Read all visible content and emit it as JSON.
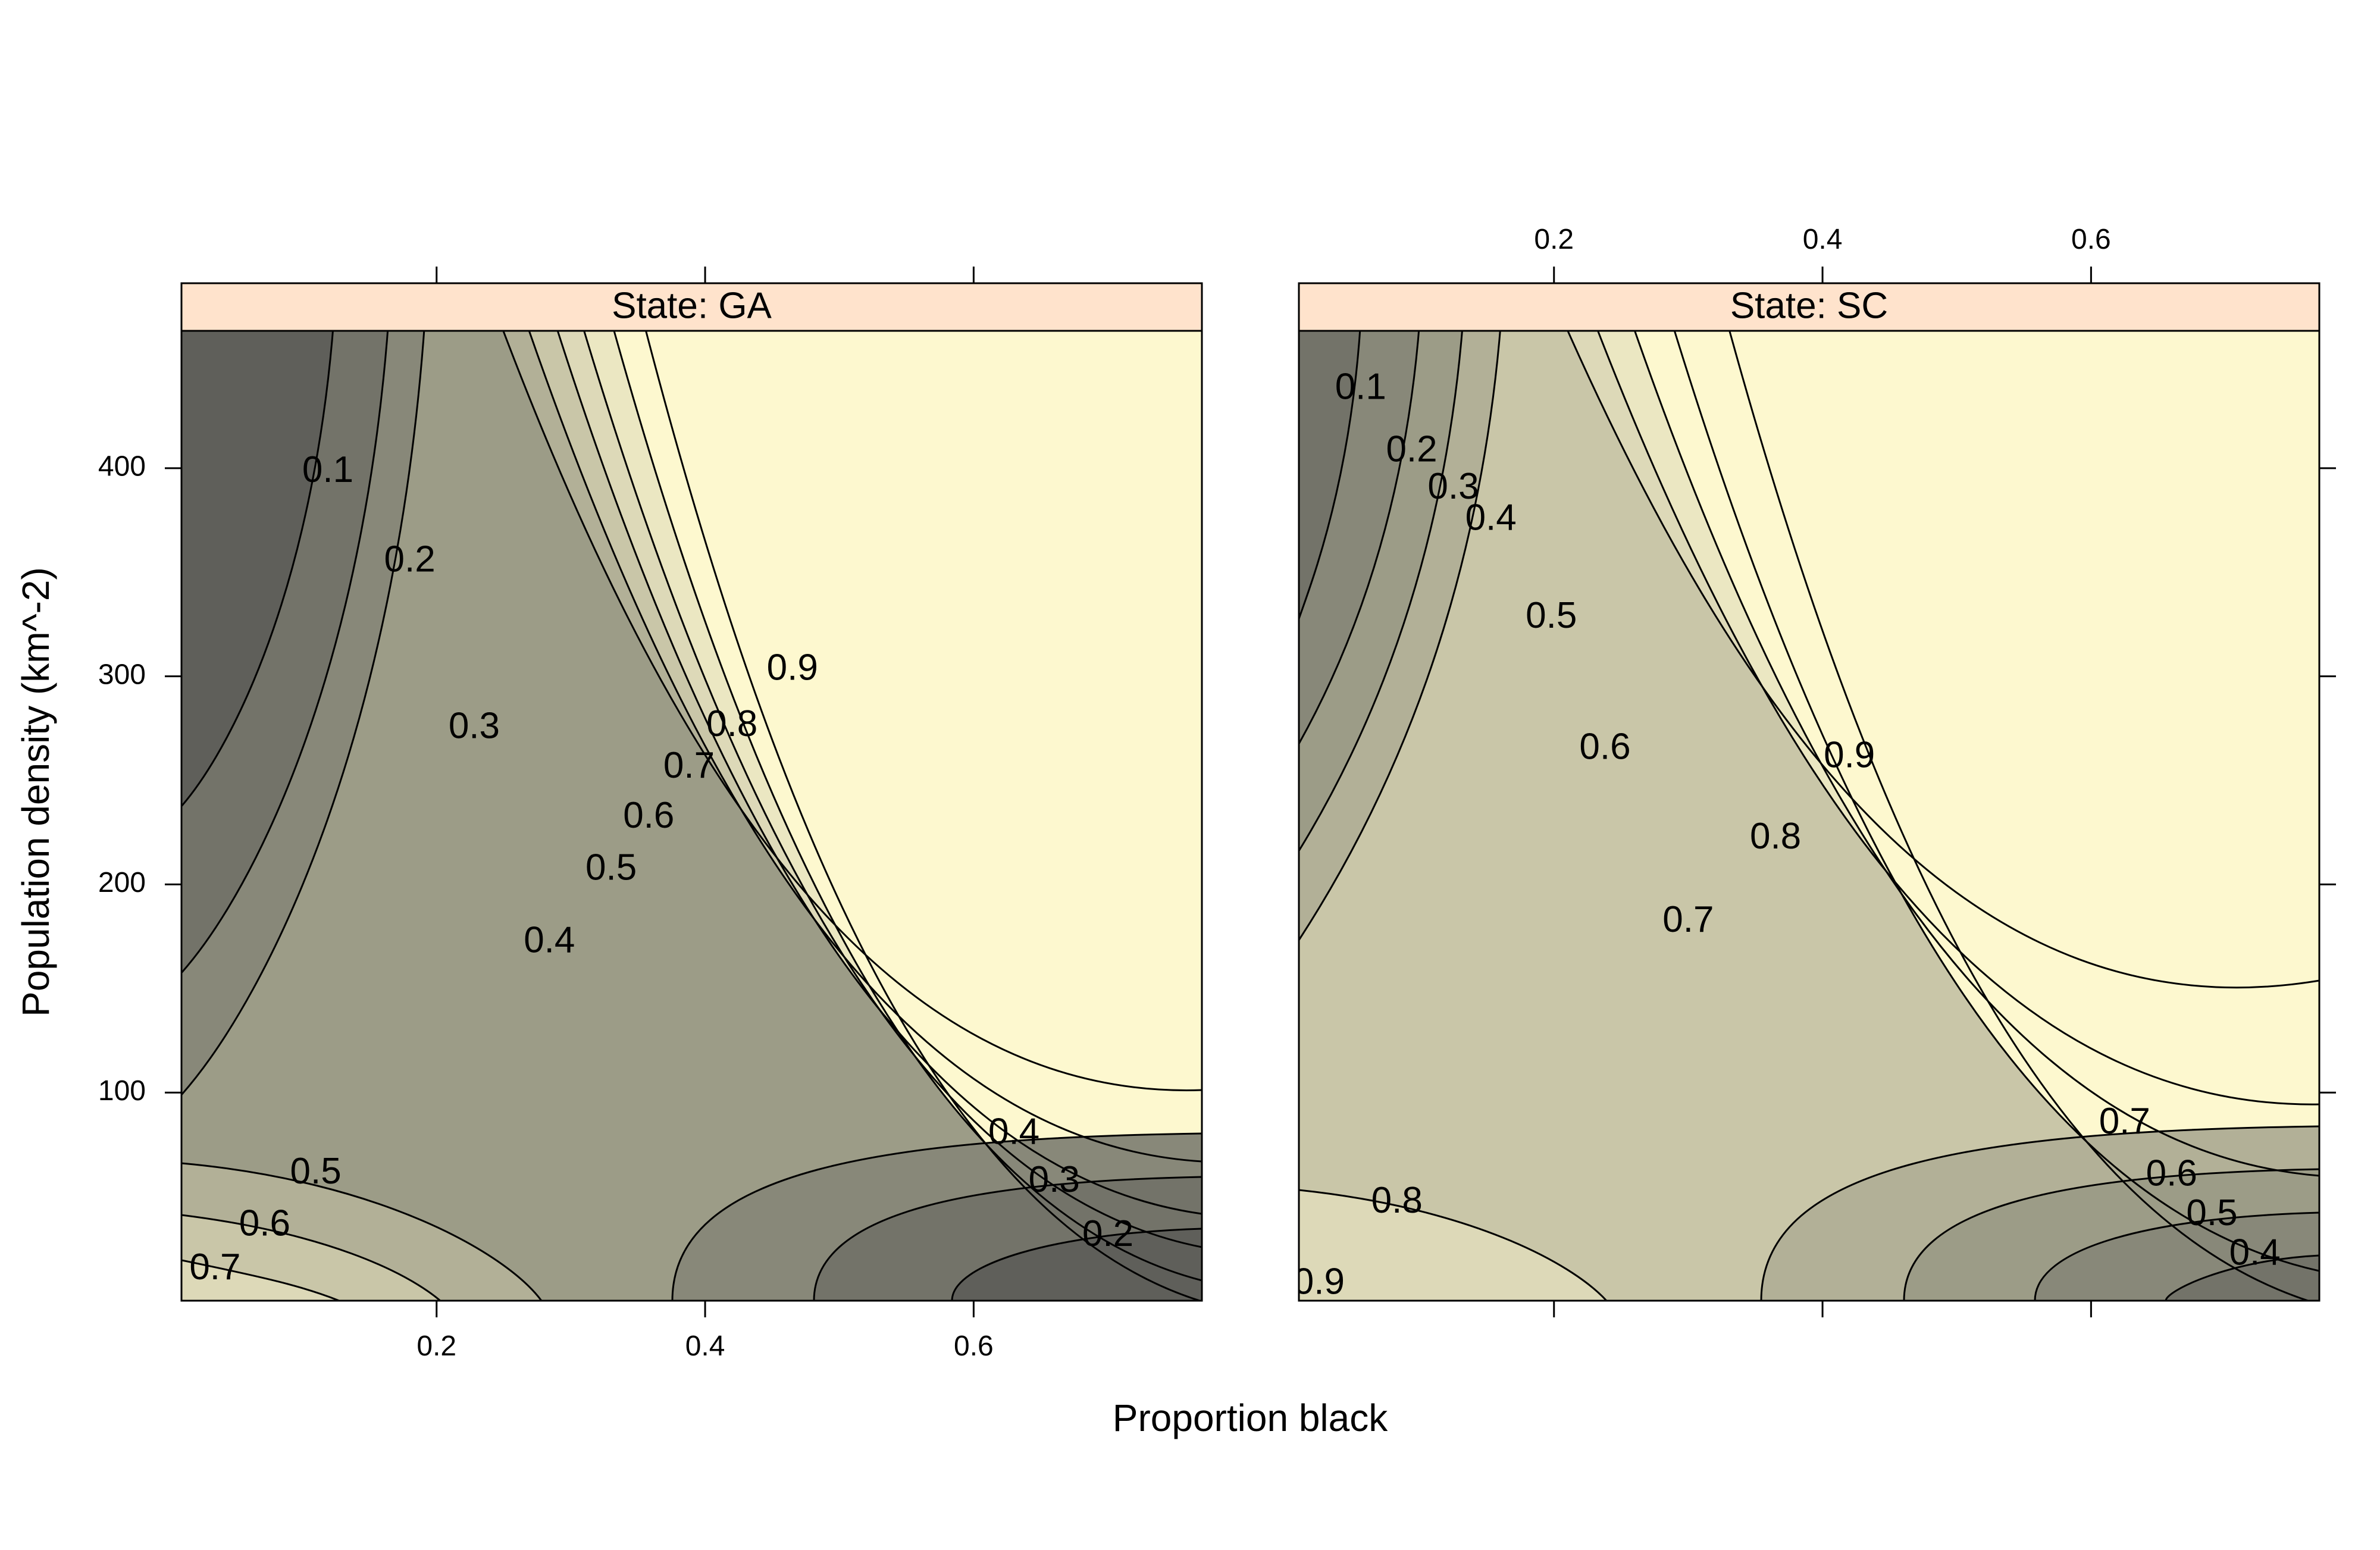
{
  "chart_data": {
    "type": "contour",
    "xlabel": "Proportion black",
    "ylabel": "Population density (km^-2)",
    "xlim": [
      0.01,
      0.77
    ],
    "ylim": [
      0,
      466
    ],
    "x_ticks": [
      0.2,
      0.4,
      0.6
    ],
    "y_ticks": [
      100,
      200,
      300,
      400
    ],
    "levels": [
      0.1,
      0.2,
      0.3,
      0.4,
      0.5,
      0.6,
      0.7,
      0.8,
      0.9
    ],
    "fill_colors": [
      "#4d4d4d",
      "#5f5f5a",
      "#737369",
      "#888879",
      "#9c9c87",
      "#b2b097",
      "#c9c6a8",
      "#ddd9b8",
      "#ebe7c2",
      "#fdf8cf"
    ],
    "strip_color": "#ffe3cc",
    "panels": [
      {
        "strip": "State: GA",
        "x_ticks_labeled": "bottom",
        "y_ticks_labeled": "left",
        "contour_labels": [
          {
            "text": "0.1",
            "x": 0.119,
            "y": 398
          },
          {
            "text": "0.2",
            "x": 0.18,
            "y": 355
          },
          {
            "text": "0.3",
            "x": 0.228,
            "y": 275
          },
          {
            "text": "0.4",
            "x": 0.284,
            "y": 172
          },
          {
            "text": "0.5",
            "x": 0.33,
            "y": 207
          },
          {
            "text": "0.6",
            "x": 0.358,
            "y": 232
          },
          {
            "text": "0.7",
            "x": 0.388,
            "y": 256
          },
          {
            "text": "0.8",
            "x": 0.42,
            "y": 276
          },
          {
            "text": "0.9",
            "x": 0.465,
            "y": 303
          },
          {
            "text": "0.4",
            "x": 0.63,
            "y": 80
          },
          {
            "text": "0.3",
            "x": 0.66,
            "y": 57
          },
          {
            "text": "0.2",
            "x": 0.7,
            "y": 31
          },
          {
            "text": "0.5",
            "x": 0.11,
            "y": 61
          },
          {
            "text": "0.6",
            "x": 0.072,
            "y": 36
          },
          {
            "text": "0.7",
            "x": 0.035,
            "y": 15
          }
        ]
      },
      {
        "strip": "State: SC",
        "x_ticks_labeled": "top",
        "y_ticks_labeled": "none",
        "contour_labels": [
          {
            "text": "0.1",
            "x": 0.056,
            "y": 438
          },
          {
            "text": "0.2",
            "x": 0.094,
            "y": 408
          },
          {
            "text": "0.3",
            "x": 0.125,
            "y": 390
          },
          {
            "text": "0.4",
            "x": 0.153,
            "y": 375
          },
          {
            "text": "0.5",
            "x": 0.198,
            "y": 328
          },
          {
            "text": "0.6",
            "x": 0.238,
            "y": 265
          },
          {
            "text": "0.7",
            "x": 0.3,
            "y": 182
          },
          {
            "text": "0.8",
            "x": 0.365,
            "y": 222
          },
          {
            "text": "0.9",
            "x": 0.42,
            "y": 261
          },
          {
            "text": "0.7",
            "x": 0.625,
            "y": 85
          },
          {
            "text": "0.6",
            "x": 0.66,
            "y": 60
          },
          {
            "text": "0.5",
            "x": 0.69,
            "y": 41
          },
          {
            "text": "0.4",
            "x": 0.722,
            "y": 22
          },
          {
            "text": "0.8",
            "x": 0.083,
            "y": 47
          },
          {
            "text": "0.9",
            "x": 0.025,
            "y": 8
          }
        ]
      }
    ]
  }
}
